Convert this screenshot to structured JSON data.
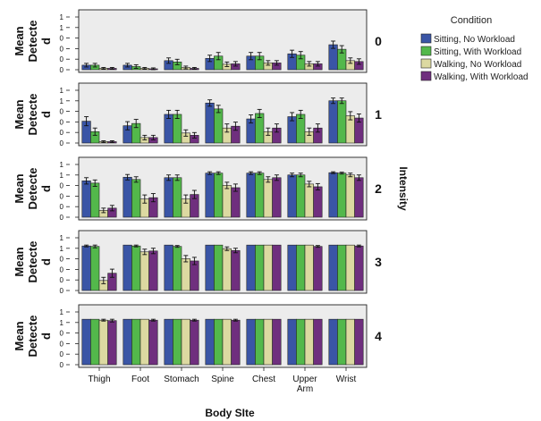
{
  "chart_data": {
    "type": "bar",
    "xlabel": "Body SIte",
    "ylabel_lines": [
      "Mean",
      "Detecte",
      "d"
    ],
    "facet_label": "Intensity",
    "facets": [
      "0",
      "1",
      "2",
      "3",
      "4"
    ],
    "categories": [
      "Thigh",
      "Foot",
      "Stomach",
      "Spine",
      "Chest",
      "Upper Arm",
      "Wrist"
    ],
    "category_lines": [
      [
        "Thigh"
      ],
      [
        "Foot"
      ],
      [
        "Stomach"
      ],
      [
        "Spine"
      ],
      [
        "Chest"
      ],
      [
        "Upper",
        "Arm"
      ],
      [
        "Wrist"
      ]
    ],
    "ytick_labels": [
      "0",
      "0",
      "0",
      "0",
      "1",
      "1"
    ],
    "ylim": [
      0,
      1.2
    ],
    "legend_title": "Condition",
    "legend_position": "right",
    "series": [
      {
        "name": "Sitting, No Workload",
        "color": "#3a55a6"
      },
      {
        "name": "Sitting, With Workload",
        "color": "#53b84b"
      },
      {
        "name": "Walking, No Workload",
        "color": "#dcd9a1"
      },
      {
        "name": "Walking, With Workload",
        "color": "#6f2f7e"
      }
    ],
    "values": [
      [
        [
          0.1,
          0.1,
          0.03,
          0.03
        ],
        [
          0.1,
          0.07,
          0.03,
          0.02
        ],
        [
          0.2,
          0.17,
          0.05,
          0.03
        ],
        [
          0.25,
          0.3,
          0.12,
          0.13
        ],
        [
          0.3,
          0.3,
          0.15,
          0.15
        ],
        [
          0.35,
          0.32,
          0.13,
          0.13
        ],
        [
          0.55,
          0.45,
          0.2,
          0.18
        ]
      ],
      [
        [
          0.48,
          0.25,
          0.03,
          0.03
        ],
        [
          0.38,
          0.43,
          0.12,
          0.12
        ],
        [
          0.63,
          0.63,
          0.22,
          0.17
        ],
        [
          0.88,
          0.75,
          0.33,
          0.37
        ],
        [
          0.53,
          0.65,
          0.25,
          0.33
        ],
        [
          0.58,
          0.63,
          0.25,
          0.33
        ],
        [
          0.93,
          0.93,
          0.6,
          0.55
        ]
      ],
      [
        [
          0.8,
          0.75,
          0.15,
          0.2
        ],
        [
          0.88,
          0.83,
          0.4,
          0.43
        ],
        [
          0.87,
          0.87,
          0.4,
          0.5
        ],
        [
          0.97,
          0.97,
          0.7,
          0.65
        ],
        [
          0.97,
          0.97,
          0.83,
          0.87
        ],
        [
          0.93,
          0.93,
          0.73,
          0.67
        ],
        [
          0.98,
          0.97,
          0.93,
          0.87
        ]
      ],
      [
        [
          0.98,
          0.97,
          0.22,
          0.38
        ],
        [
          1.0,
          0.98,
          0.85,
          0.87
        ],
        [
          1.0,
          0.97,
          0.7,
          0.65
        ],
        [
          1.0,
          1.0,
          0.92,
          0.88
        ],
        [
          1.0,
          1.0,
          1.0,
          1.0
        ],
        [
          1.0,
          1.0,
          1.0,
          0.97
        ],
        [
          1.0,
          1.0,
          1.0,
          0.98
        ]
      ],
      [
        [
          1.0,
          1.0,
          0.98,
          0.97
        ],
        [
          1.0,
          1.0,
          1.0,
          0.98
        ],
        [
          1.0,
          1.0,
          1.0,
          0.98
        ],
        [
          1.0,
          1.0,
          1.0,
          0.98
        ],
        [
          1.0,
          1.0,
          1.0,
          1.0
        ],
        [
          1.0,
          1.0,
          1.0,
          1.0
        ],
        [
          1.0,
          1.0,
          1.0,
          1.0
        ]
      ]
    ],
    "errors": [
      [
        [
          0.04,
          0.04,
          0.02,
          0.02
        ],
        [
          0.04,
          0.04,
          0.02,
          0.02
        ],
        [
          0.06,
          0.06,
          0.03,
          0.02
        ],
        [
          0.07,
          0.08,
          0.05,
          0.05
        ],
        [
          0.08,
          0.08,
          0.05,
          0.05
        ],
        [
          0.08,
          0.08,
          0.05,
          0.05
        ],
        [
          0.08,
          0.08,
          0.06,
          0.06
        ]
      ],
      [
        [
          0.1,
          0.08,
          0.02,
          0.02
        ],
        [
          0.09,
          0.09,
          0.05,
          0.05
        ],
        [
          0.09,
          0.09,
          0.07,
          0.06
        ],
        [
          0.07,
          0.08,
          0.09,
          0.09
        ],
        [
          0.09,
          0.09,
          0.08,
          0.09
        ],
        [
          0.09,
          0.09,
          0.08,
          0.09
        ],
        [
          0.06,
          0.06,
          0.09,
          0.09
        ]
      ],
      [
        [
          0.07,
          0.07,
          0.05,
          0.06
        ],
        [
          0.06,
          0.06,
          0.09,
          0.09
        ],
        [
          0.06,
          0.06,
          0.09,
          0.09
        ],
        [
          0.03,
          0.03,
          0.07,
          0.08
        ],
        [
          0.03,
          0.03,
          0.06,
          0.06
        ],
        [
          0.04,
          0.04,
          0.06,
          0.07
        ],
        [
          0.02,
          0.02,
          0.04,
          0.06
        ]
      ],
      [
        [
          0.02,
          0.03,
          0.07,
          0.09
        ],
        [
          0.0,
          0.02,
          0.06,
          0.06
        ],
        [
          0.0,
          0.02,
          0.07,
          0.08
        ],
        [
          0.0,
          0.0,
          0.04,
          0.05
        ],
        [
          0.0,
          0.0,
          0.0,
          0.0
        ],
        [
          0.0,
          0.0,
          0.0,
          0.02
        ],
        [
          0.0,
          0.0,
          0.0,
          0.02
        ]
      ],
      [
        [
          0.0,
          0.0,
          0.02,
          0.03
        ],
        [
          0.0,
          0.0,
          0.0,
          0.02
        ],
        [
          0.0,
          0.0,
          0.0,
          0.02
        ],
        [
          0.0,
          0.0,
          0.0,
          0.02
        ],
        [
          0.0,
          0.0,
          0.0,
          0.0
        ],
        [
          0.0,
          0.0,
          0.0,
          0.0
        ],
        [
          0.0,
          0.0,
          0.0,
          0.0
        ]
      ]
    ]
  }
}
